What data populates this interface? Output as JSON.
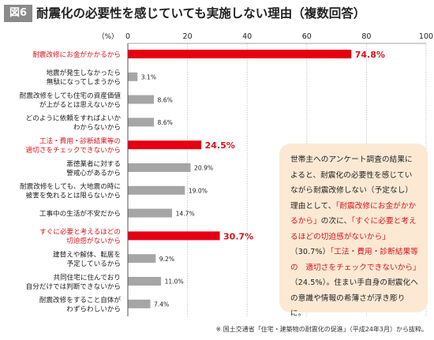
{
  "figure": {
    "badge": "図6",
    "title": "耐震化の必要性を感じていても実施しない理由（複数回答）"
  },
  "chart_data": {
    "type": "bar",
    "orientation": "horizontal",
    "unit_label": "（%）",
    "xlim": [
      0,
      100
    ],
    "ticks": [
      "0",
      "20",
      "40",
      "60",
      "80",
      "100"
    ],
    "grid": true,
    "categories": [
      [
        "耐震改修にお金がかかるから"
      ],
      [
        "地震が発生しなかったら",
        "無駄になってしまうから"
      ],
      [
        "耐震改修をしても住宅の資産価値",
        "が上がるとは思えないから"
      ],
      [
        "どのように依頼をすればよいか",
        "わからないから"
      ],
      [
        "工法・費用・診断結果等の",
        "適切さをチェックできないから"
      ],
      [
        "悪徳業者に対する",
        "警戒心があるから"
      ],
      [
        "耐震改修をしても、大地震の時に",
        "被害を免れるとは限らないから"
      ],
      [
        "工事中の生活が不安だから"
      ],
      [
        "すぐに必要と考えるほどの",
        "切迫感がないから"
      ],
      [
        "建替えや解体、転居を",
        "予定しているから"
      ],
      [
        "共同住宅に住んでおり",
        "自分だけでは判断できないから"
      ],
      [
        "耐震改修をすること自体が",
        "わずらわしいから"
      ]
    ],
    "values": [
      74.8,
      3.1,
      8.6,
      8.6,
      24.5,
      20.9,
      19.0,
      14.7,
      30.7,
      9.2,
      11.0,
      7.4
    ],
    "value_labels": [
      "74.8%",
      "3.1%",
      "8.6%",
      "8.6%",
      "24.5%",
      "20.9%",
      "19.0%",
      "14.7%",
      "30.7%",
      "9.2%",
      "11.0%",
      "7.4%"
    ],
    "highlighted": [
      true,
      false,
      false,
      false,
      true,
      false,
      false,
      false,
      true,
      false,
      false,
      false
    ],
    "colors": {
      "highlight": "#e50012",
      "normal": "#a6a6a6",
      "highlight_text": "#d8121a",
      "grid": "#bfbfbf"
    }
  },
  "note": {
    "segments": [
      {
        "text": "世帯主へのアンケート調査の結果によると、耐震化の必要性を感じていながら耐震改修しない（予定なし）理由として、",
        "highlight": false
      },
      {
        "text": "「耐震改修にお金がかかるから」",
        "highlight": true
      },
      {
        "text": "の次に、",
        "highlight": false
      },
      {
        "text": "「すぐに必要と考えるほどの切迫感がないから」",
        "highlight": true
      },
      {
        "text": "（30.7%）",
        "highlight": false
      },
      {
        "text": "「工法・費用・診断結果等の　適切さをチェックできないから」",
        "highlight": true
      },
      {
        "text": "（24.5%）。住まい手自身の耐震化への意識や情報の希薄さが浮き彫りに。",
        "highlight": false
      }
    ]
  },
  "source": "※ 国土交通省「住宅・建築物の耐震化の促進」（平成24年3月）から抜粋。"
}
